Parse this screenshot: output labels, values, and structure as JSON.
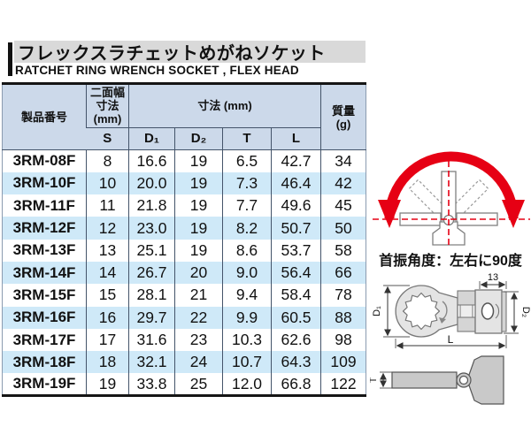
{
  "header": {
    "title_jp": "フレックスラチェットめがねソケット",
    "subtitle_en": "RATCHET RING WRENCH SOCKET , FLEX HEAD"
  },
  "table": {
    "col_product": "製品番号",
    "col_saf_lines": [
      "二面幅",
      "寸法",
      "(mm)"
    ],
    "col_dims": "寸法 (mm)",
    "col_mass_lines": [
      "質量",
      "(g)"
    ],
    "subcols": [
      "S",
      "D₁",
      "D₂",
      "T",
      "L"
    ],
    "rows": [
      [
        "3RM-08F",
        "8",
        "16.6",
        "19",
        "6.5",
        "42.7",
        "34"
      ],
      [
        "3RM-10F",
        "10",
        "20.0",
        "19",
        "7.3",
        "46.4",
        "42"
      ],
      [
        "3RM-11F",
        "11",
        "21.8",
        "19",
        "7.7",
        "49.6",
        "45"
      ],
      [
        "3RM-12F",
        "12",
        "23.0",
        "19",
        "8.2",
        "50.7",
        "50"
      ],
      [
        "3RM-13F",
        "13",
        "25.1",
        "19",
        "8.6",
        "53.7",
        "58"
      ],
      [
        "3RM-14F",
        "14",
        "26.7",
        "20",
        "9.0",
        "56.4",
        "66"
      ],
      [
        "3RM-15F",
        "15",
        "28.1",
        "21",
        "9.4",
        "58.4",
        "78"
      ],
      [
        "3RM-16F",
        "16",
        "29.7",
        "22",
        "9.9",
        "60.5",
        "88"
      ],
      [
        "3RM-17F",
        "17",
        "31.6",
        "23",
        "10.3",
        "62.6",
        "98"
      ],
      [
        "3RM-18F",
        "18",
        "32.1",
        "24",
        "10.7",
        "64.3",
        "109"
      ],
      [
        "3RM-19F",
        "19",
        "33.8",
        "25",
        "12.0",
        "66.8",
        "122"
      ]
    ]
  },
  "swing": {
    "caption": "首振角度：左右に90度"
  },
  "drawing": {
    "labels": {
      "d1": "D₁",
      "d2": "D₂",
      "t": "T",
      "l": "L",
      "socket_width": "13"
    }
  },
  "colors": {
    "accent_red": "#e60014",
    "header_bg": "#ccd9ea",
    "stripe_bg": "#cfe9f8",
    "title_strip_bg": "#d9d9d9"
  }
}
